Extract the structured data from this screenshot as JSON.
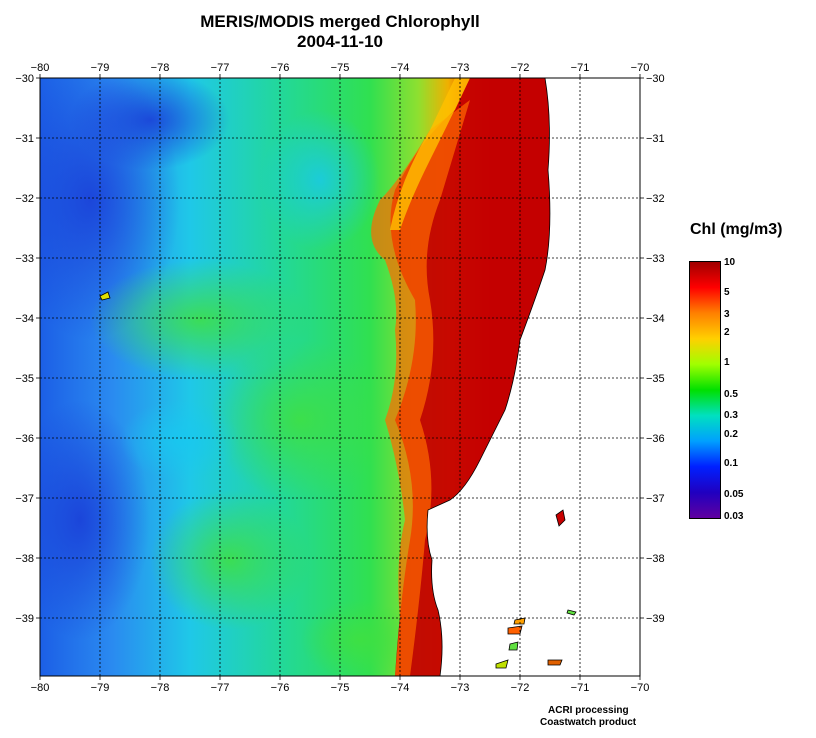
{
  "title": {
    "line1": "MERIS/MODIS merged Chlorophyll",
    "line2": "2004-11-10"
  },
  "map": {
    "lon_ticks": [
      "−80",
      "−79",
      "−78",
      "−77",
      "−76",
      "−75",
      "−74",
      "−73",
      "−72",
      "−71",
      "−70"
    ],
    "lat_ticks": [
      "−30",
      "−31",
      "−32",
      "−33",
      "−34",
      "−35",
      "−36",
      "−37",
      "−38",
      "−39"
    ],
    "grid": "dotted",
    "land_color": "#ffffff",
    "ocean_description_colors": {
      "offshore": "#1a6ef0",
      "mid": "#2ee07a",
      "coastal": "#c80000"
    }
  },
  "legend": {
    "title": "Chl (mg/m3)",
    "labels": [
      "10",
      "5",
      "3",
      "2",
      "1",
      "0.5",
      "0.3",
      "0.2",
      "0.1",
      "0.05",
      "0.03"
    ],
    "colors_top_to_bottom": [
      "#a00000",
      "#ff0000",
      "#ff8000",
      "#ffd000",
      "#a0ff00",
      "#00e000",
      "#00e0c0",
      "#00a0ff",
      "#0020ff",
      "#2000c0",
      "#6000a0"
    ]
  },
  "credits": {
    "line1": "ACRI processing",
    "line2": "Coastwatch product"
  }
}
